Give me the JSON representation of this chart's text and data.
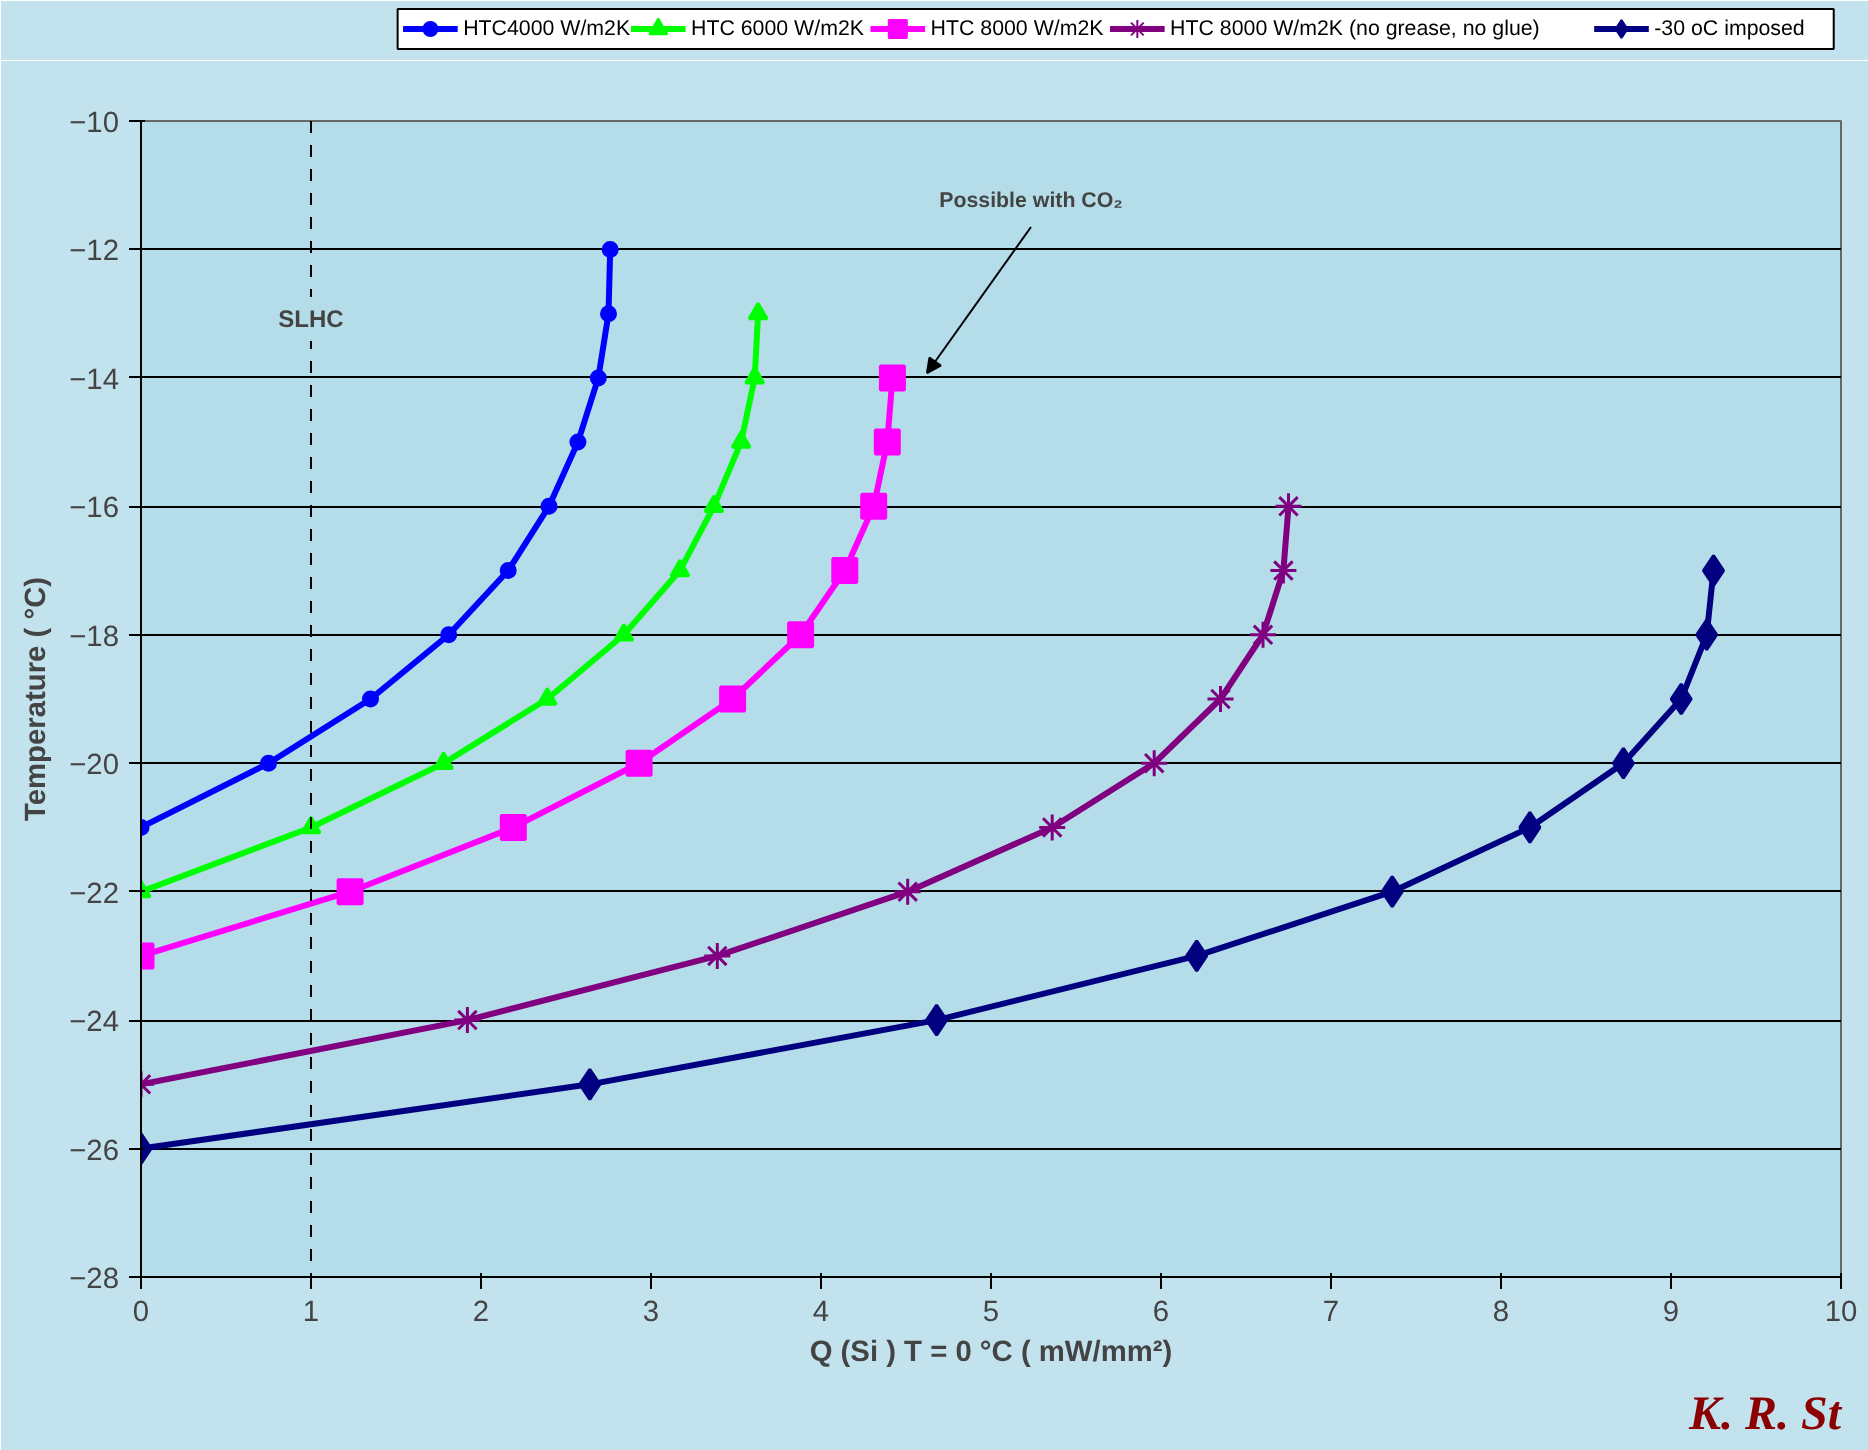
{
  "chart_data": {
    "type": "line",
    "xlabel": "Q (Si ) T = 0 °C ( mW/mm²)",
    "ylabel": "Temperature ( °C)",
    "xlim": [
      0,
      10
    ],
    "ylim": [
      -28,
      -10
    ],
    "xticks": [
      0,
      1,
      2,
      3,
      4,
      5,
      6,
      7,
      8,
      9,
      10
    ],
    "yticks": [
      -28,
      -26,
      -24,
      -22,
      -20,
      -18,
      -16,
      -14,
      -12,
      -10
    ],
    "grid": "y",
    "legend": "top",
    "line_style": "solid",
    "series": [
      {
        "name": "HTC4000 W/m2K",
        "color": "#0000ff",
        "marker": "circle",
        "x": [
          0,
          0.75,
          1.35,
          1.81,
          2.16,
          2.4,
          2.57,
          2.69,
          2.75,
          2.76
        ],
        "values": [
          -21,
          -20,
          -19,
          -18,
          -17,
          -16,
          -15,
          -14,
          -13,
          -12
        ]
      },
      {
        "name": "HTC 6000 W/m2K",
        "color": "#00ff00",
        "marker": "triangle",
        "x": [
          0,
          1.0,
          1.78,
          2.39,
          2.84,
          3.17,
          3.37,
          3.53,
          3.61,
          3.63
        ],
        "values": [
          -22,
          -21,
          -20,
          -19,
          -18,
          -17,
          -16,
          -15,
          -14,
          -13
        ]
      },
      {
        "name": "HTC 8000 W/m2K",
        "color": "#ff00ff",
        "marker": "square",
        "x": [
          0,
          1.23,
          2.19,
          2.93,
          3.48,
          3.88,
          4.14,
          4.31,
          4.39,
          4.42
        ],
        "values": [
          -23,
          -22,
          -21,
          -20,
          -19,
          -18,
          -17,
          -16,
          -15,
          -14
        ]
      },
      {
        "name": "HTC 8000 W/m2K (no grease, no glue)",
        "color": "#800080",
        "marker": "cross",
        "x": [
          0,
          1.92,
          3.39,
          4.51,
          5.36,
          5.96,
          6.35,
          6.6,
          6.72,
          6.75
        ],
        "values": [
          -25,
          -24,
          -23,
          -22,
          -21,
          -20,
          -19,
          -18,
          -17,
          -16
        ]
      },
      {
        "name": "-30 oC imposed",
        "color": "#000080",
        "marker": "diamond",
        "x": [
          0,
          2.64,
          4.68,
          6.21,
          7.36,
          8.17,
          8.72,
          9.06,
          9.21,
          9.25
        ],
        "values": [
          -26,
          -25,
          -24,
          -23,
          -22,
          -21,
          -20,
          -19,
          -18,
          -17
        ]
      }
    ],
    "ref_lines": [
      {
        "axis": "x",
        "value": 1,
        "label": "SLHC",
        "color": "#000000",
        "line_style": "dashed"
      }
    ],
    "annotations": [
      "Possible with CO₂",
      "K. R. St"
    ]
  }
}
